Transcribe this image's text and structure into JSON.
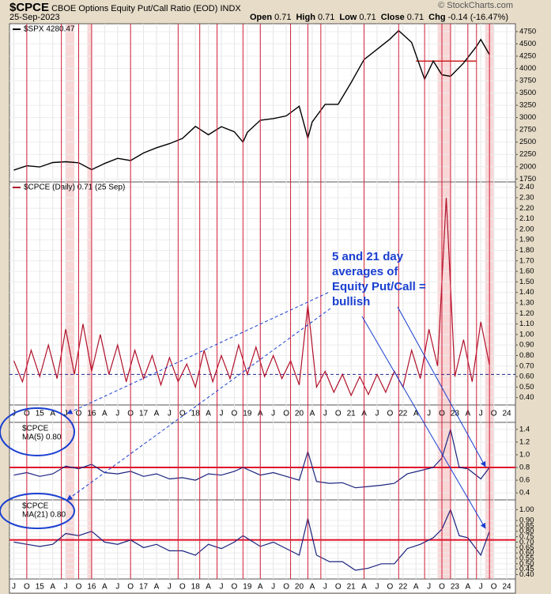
{
  "header": {
    "symbol": "$CPCE",
    "description": "CBOE Options Equity Put/Call Ratio (EOD) INDX",
    "date": "25-Sep-2023",
    "credit": "© StockCharts.com",
    "quote": [
      {
        "label": "Open",
        "value": "0.71"
      },
      {
        "label": "High",
        "value": "0.71"
      },
      {
        "label": "Low",
        "value": "0.71"
      },
      {
        "label": "Close",
        "value": "0.71"
      },
      {
        "label": "Chg",
        "value": "-0.14 (-16.47%)"
      }
    ]
  },
  "annotation": [
    "5 and 21 day",
    "averages of",
    "Equity Put/Call =",
    "bullish"
  ],
  "xlim": [
    "2014-06",
    "2024-03"
  ],
  "signal_lines": [
    "2014-10",
    "2015-06",
    "2015-10",
    "2016-01",
    "2016-10",
    "2017-09",
    "2018-02",
    "2018-06",
    "2018-12",
    "2019-04",
    "2019-11",
    "2020-03",
    "2020-06",
    "2021-04",
    "2021-12",
    "2022-06",
    "2022-10",
    "2022-12",
    "2023-04",
    "2023-06",
    "2023-09"
  ],
  "highlight_bands": [
    [
      "2015-07",
      "2015-09"
    ],
    [
      "2015-12",
      "2016-01"
    ],
    [
      "2022-09",
      "2022-12"
    ],
    [
      "2023-08",
      "2023-10"
    ]
  ],
  "chart_data": [
    {
      "type": "line",
      "legend": "$SPX 4280.47",
      "color": "#000000",
      "ylim": [
        1690,
        4910
      ],
      "yticks": [
        1750,
        2000,
        2250,
        2500,
        2750,
        3000,
        3250,
        3500,
        3750,
        4000,
        4250,
        4500,
        4750
      ],
      "x": [
        "2014-07",
        "2014-10",
        "2015-01",
        "2015-04",
        "2015-07",
        "2015-10",
        "2016-01",
        "2016-04",
        "2016-07",
        "2016-10",
        "2017-01",
        "2017-04",
        "2017-07",
        "2017-10",
        "2018-01",
        "2018-04",
        "2018-07",
        "2018-10",
        "2018-12",
        "2019-01",
        "2019-04",
        "2019-07",
        "2019-10",
        "2020-01",
        "2020-03",
        "2020-04",
        "2020-07",
        "2020-10",
        "2021-01",
        "2021-04",
        "2021-07",
        "2021-10",
        "2021-12",
        "2022-03",
        "2022-06",
        "2022-08",
        "2022-10",
        "2022-12",
        "2023-03",
        "2023-06",
        "2023-07",
        "2023-09"
      ],
      "values": [
        1930,
        2018,
        1995,
        2085,
        2100,
        2080,
        1940,
        2065,
        2170,
        2125,
        2280,
        2385,
        2470,
        2575,
        2820,
        2650,
        2815,
        2710,
        2500,
        2700,
        2945,
        2980,
        3035,
        3230,
        2580,
        2910,
        3270,
        3270,
        3710,
        4180,
        4390,
        4600,
        4770,
        4530,
        3780,
        4150,
        3870,
        3840,
        4110,
        4450,
        4590,
        4280
      ],
      "resistance": {
        "value": 4150,
        "from": "2022-04",
        "to": "2023-06",
        "color": "#cc2222"
      }
    },
    {
      "type": "line",
      "legend": "$CPCE (Daily) 0.71 (25 Sep)",
      "color": "#b0102a",
      "ylim": [
        0.33,
        2.45
      ],
      "yticks": [
        {
          "value": 0.4,
          "label": "0.40"
        },
        {
          "value": 0.5,
          "label": "0.50"
        },
        {
          "value": 0.6,
          "label": "0.60"
        },
        {
          "value": 0.7,
          "label": "0.70"
        },
        {
          "value": 0.8,
          "label": "0.80"
        },
        {
          "value": 0.9,
          "label": "0.90"
        },
        {
          "value": 1.0,
          "label": "1.00"
        },
        {
          "value": 1.1,
          "label": "1.10"
        },
        {
          "value": 1.2,
          "label": "1.20"
        },
        {
          "value": 1.3,
          "label": "1.30"
        },
        {
          "value": 1.4,
          "label": "1.40"
        },
        {
          "value": 1.5,
          "label": "1.50"
        },
        {
          "value": 1.6,
          "label": "1.60"
        },
        {
          "value": 1.7,
          "label": "1.70"
        },
        {
          "value": 1.8,
          "label": "1.80"
        },
        {
          "value": 1.9,
          "label": "1.90"
        },
        {
          "value": 2.0,
          "label": "2.00"
        },
        {
          "value": 2.1,
          "label": "2.10"
        },
        {
          "value": 2.2,
          "label": "2.20"
        },
        {
          "value": 2.3,
          "label": "2.30"
        },
        {
          "value": 2.4,
          "label": "2.40"
        }
      ],
      "x": [
        "2014-07",
        "2014-09",
        "2014-11",
        "2015-01",
        "2015-03",
        "2015-05",
        "2015-07",
        "2015-09",
        "2015-11",
        "2016-01",
        "2016-03",
        "2016-05",
        "2016-07",
        "2016-09",
        "2016-11",
        "2017-01",
        "2017-03",
        "2017-05",
        "2017-07",
        "2017-09",
        "2017-11",
        "2018-01",
        "2018-03",
        "2018-05",
        "2018-07",
        "2018-09",
        "2018-11",
        "2019-01",
        "2019-03",
        "2019-05",
        "2019-07",
        "2019-09",
        "2019-11",
        "2020-01",
        "2020-03",
        "2020-05",
        "2020-07",
        "2020-09",
        "2020-11",
        "2021-01",
        "2021-03",
        "2021-05",
        "2021-07",
        "2021-09",
        "2021-11",
        "2022-01",
        "2022-03",
        "2022-05",
        "2022-07",
        "2022-09",
        "2022-11",
        "2023-01",
        "2023-03",
        "2023-05",
        "2023-07",
        "2023-09"
      ],
      "values": [
        0.75,
        0.55,
        0.85,
        0.6,
        0.9,
        0.58,
        1.05,
        0.62,
        1.1,
        0.65,
        1.0,
        0.62,
        0.9,
        0.55,
        0.85,
        0.58,
        0.8,
        0.52,
        0.78,
        0.55,
        0.72,
        0.5,
        0.85,
        0.55,
        0.8,
        0.58,
        0.9,
        0.62,
        0.88,
        0.6,
        0.8,
        0.58,
        0.75,
        0.52,
        1.28,
        0.5,
        0.65,
        0.45,
        0.62,
        0.42,
        0.6,
        0.43,
        0.62,
        0.45,
        0.65,
        0.5,
        0.85,
        0.58,
        1.05,
        0.7,
        2.3,
        0.6,
        0.95,
        0.55,
        1.12,
        0.71
      ],
      "reference": {
        "value": 0.62,
        "color": "#1a2a8a"
      },
      "xticks": [
        {
          "value": "2014-07",
          "label": "J"
        },
        {
          "value": "2014-10",
          "label": "O"
        },
        {
          "value": "2015-01",
          "label": "15"
        },
        {
          "value": "2015-04",
          "label": "A"
        },
        {
          "value": "2015-07",
          "label": "J"
        },
        {
          "value": "2015-10",
          "label": "O"
        },
        {
          "value": "2016-01",
          "label": "16"
        },
        {
          "value": "2016-04",
          "label": "A"
        },
        {
          "value": "2016-07",
          "label": "J"
        },
        {
          "value": "2016-10",
          "label": "O"
        },
        {
          "value": "2017-01",
          "label": "17"
        },
        {
          "value": "2017-04",
          "label": "A"
        },
        {
          "value": "2017-07",
          "label": "J"
        },
        {
          "value": "2017-10",
          "label": "O"
        },
        {
          "value": "2018-01",
          "label": "18"
        },
        {
          "value": "2018-04",
          "label": "A"
        },
        {
          "value": "2018-07",
          "label": "J"
        },
        {
          "value": "2018-10",
          "label": "O"
        },
        {
          "value": "2019-01",
          "label": "19"
        },
        {
          "value": "2019-04",
          "label": "A"
        },
        {
          "value": "2019-07",
          "label": "J"
        },
        {
          "value": "2019-10",
          "label": "O"
        },
        {
          "value": "2020-01",
          "label": "20"
        },
        {
          "value": "2020-04",
          "label": "A"
        },
        {
          "value": "2020-07",
          "label": "J"
        },
        {
          "value": "2020-10",
          "label": "O"
        },
        {
          "value": "2021-01",
          "label": "21"
        },
        {
          "value": "2021-04",
          "label": "A"
        },
        {
          "value": "2021-07",
          "label": "J"
        },
        {
          "value": "2021-10",
          "label": "O"
        },
        {
          "value": "2022-01",
          "label": "22"
        },
        {
          "value": "2022-04",
          "label": "A"
        },
        {
          "value": "2022-07",
          "label": "J"
        },
        {
          "value": "2022-10",
          "label": "O"
        },
        {
          "value": "2023-01",
          "label": "23"
        },
        {
          "value": "2023-04",
          "label": "A"
        },
        {
          "value": "2023-07",
          "label": "J"
        },
        {
          "value": "2023-10",
          "label": "O"
        },
        {
          "value": "2024-01",
          "label": "24"
        }
      ]
    },
    {
      "type": "line",
      "legend": [
        "$CPCE",
        "MA(5) 0.80"
      ],
      "color": "#1a237e",
      "ylim": [
        0.29,
        1.51
      ],
      "yticks": [
        0.4,
        0.6,
        0.8,
        {
          "value": 1,
          "label": "1.0"
        },
        1.2,
        1.4
      ],
      "x": [
        "2014-07",
        "2014-10",
        "2015-01",
        "2015-04",
        "2015-07",
        "2015-10",
        "2016-01",
        "2016-04",
        "2016-07",
        "2016-10",
        "2017-01",
        "2017-04",
        "2017-07",
        "2017-10",
        "2018-01",
        "2018-04",
        "2018-07",
        "2018-10",
        "2018-12",
        "2019-04",
        "2019-07",
        "2019-10",
        "2020-01",
        "2020-03",
        "2020-05",
        "2020-08",
        "2020-11",
        "2021-02",
        "2021-05",
        "2021-08",
        "2021-11",
        "2022-02",
        "2022-05",
        "2022-08",
        "2022-10",
        "2022-12",
        "2023-02",
        "2023-04",
        "2023-07",
        "2023-09"
      ],
      "values": [
        0.68,
        0.72,
        0.66,
        0.7,
        0.82,
        0.78,
        0.85,
        0.72,
        0.7,
        0.74,
        0.66,
        0.7,
        0.62,
        0.64,
        0.6,
        0.7,
        0.68,
        0.74,
        0.8,
        0.68,
        0.72,
        0.66,
        0.6,
        1.05,
        0.58,
        0.55,
        0.56,
        0.48,
        0.5,
        0.52,
        0.55,
        0.7,
        0.75,
        0.8,
        0.95,
        1.4,
        0.8,
        0.78,
        0.62,
        0.8
      ],
      "reference": {
        "value": 0.8,
        "color": "#e0102a"
      }
    },
    {
      "type": "line",
      "legend": [
        "$CPCE",
        "MA(21) 0.80"
      ],
      "color": "#1a237e",
      "ylim": [
        0.36,
        1.09
      ],
      "yticks": [
        {
          "value": 0.4,
          "label": "0.40"
        },
        {
          "value": 0.45,
          "label": "0.45"
        },
        {
          "value": 0.5,
          "label": "0.50"
        },
        {
          "value": 0.55,
          "label": "0.55"
        },
        {
          "value": 0.6,
          "label": "0.60"
        },
        {
          "value": 0.65,
          "label": "0.65"
        },
        {
          "value": 0.7,
          "label": "0.70"
        },
        {
          "value": 0.75,
          "label": "0.75"
        },
        {
          "value": 0.8,
          "label": "0.80"
        },
        {
          "value": 0.85,
          "label": "0.85"
        },
        {
          "value": 0.9,
          "label": "0.90"
        },
        {
          "value": 1.0,
          "label": "1.00"
        }
      ],
      "x": [
        "2014-07",
        "2014-10",
        "2015-01",
        "2015-04",
        "2015-07",
        "2015-10",
        "2016-01",
        "2016-04",
        "2016-07",
        "2016-10",
        "2017-01",
        "2017-04",
        "2017-07",
        "2017-10",
        "2018-01",
        "2018-04",
        "2018-07",
        "2018-10",
        "2018-12",
        "2019-04",
        "2019-07",
        "2019-10",
        "2020-01",
        "2020-03",
        "2020-05",
        "2020-08",
        "2020-11",
        "2021-02",
        "2021-05",
        "2021-08",
        "2021-11",
        "2022-02",
        "2022-05",
        "2022-08",
        "2022-10",
        "2022-12",
        "2023-02",
        "2023-04",
        "2023-07",
        "2023-09"
      ],
      "values": [
        0.7,
        0.68,
        0.66,
        0.68,
        0.78,
        0.76,
        0.8,
        0.7,
        0.68,
        0.72,
        0.65,
        0.68,
        0.62,
        0.62,
        0.58,
        0.68,
        0.64,
        0.7,
        0.76,
        0.66,
        0.7,
        0.64,
        0.58,
        0.92,
        0.58,
        0.52,
        0.52,
        0.44,
        0.46,
        0.5,
        0.5,
        0.64,
        0.68,
        0.74,
        0.82,
        1.0,
        0.76,
        0.74,
        0.58,
        0.8
      ],
      "reference": {
        "value": 0.72,
        "color": "#e0102a"
      },
      "xticks": [
        {
          "value": "2014-07",
          "label": "J"
        },
        {
          "value": "2014-10",
          "label": "O"
        },
        {
          "value": "2015-01",
          "label": "15"
        },
        {
          "value": "2015-04",
          "label": "A"
        },
        {
          "value": "2015-07",
          "label": "J"
        },
        {
          "value": "2015-10",
          "label": "O"
        },
        {
          "value": "2016-01",
          "label": "16"
        },
        {
          "value": "2016-04",
          "label": "A"
        },
        {
          "value": "2016-07",
          "label": "J"
        },
        {
          "value": "2016-10",
          "label": "O"
        },
        {
          "value": "2017-01",
          "label": "17"
        },
        {
          "value": "2017-04",
          "label": "A"
        },
        {
          "value": "2017-07",
          "label": "J"
        },
        {
          "value": "2017-10",
          "label": "O"
        },
        {
          "value": "2018-01",
          "label": "18"
        },
        {
          "value": "2018-04",
          "label": "A"
        },
        {
          "value": "2018-07",
          "label": "J"
        },
        {
          "value": "2018-10",
          "label": "O"
        },
        {
          "value": "2019-01",
          "label": "19"
        },
        {
          "value": "2019-04",
          "label": "A"
        },
        {
          "value": "2019-07",
          "label": "J"
        },
        {
          "value": "2019-10",
          "label": "O"
        },
        {
          "value": "2020-01",
          "label": "20"
        },
        {
          "value": "2020-04",
          "label": "A"
        },
        {
          "value": "2020-07",
          "label": "J"
        },
        {
          "value": "2020-10",
          "label": "O"
        },
        {
          "value": "2021-01",
          "label": "21"
        },
        {
          "value": "2021-04",
          "label": "A"
        },
        {
          "value": "2021-07",
          "label": "J"
        },
        {
          "value": "2021-10",
          "label": "O"
        },
        {
          "value": "2022-01",
          "label": "22"
        },
        {
          "value": "2022-04",
          "label": "A"
        },
        {
          "value": "2022-07",
          "label": "J"
        },
        {
          "value": "2022-10",
          "label": "O"
        },
        {
          "value": "2023-01",
          "label": "23"
        },
        {
          "value": "2023-04",
          "label": "A"
        },
        {
          "value": "2023-07",
          "label": "J"
        },
        {
          "value": "2023-10",
          "label": "O"
        },
        {
          "value": "2024-01",
          "label": "24"
        }
      ]
    }
  ]
}
